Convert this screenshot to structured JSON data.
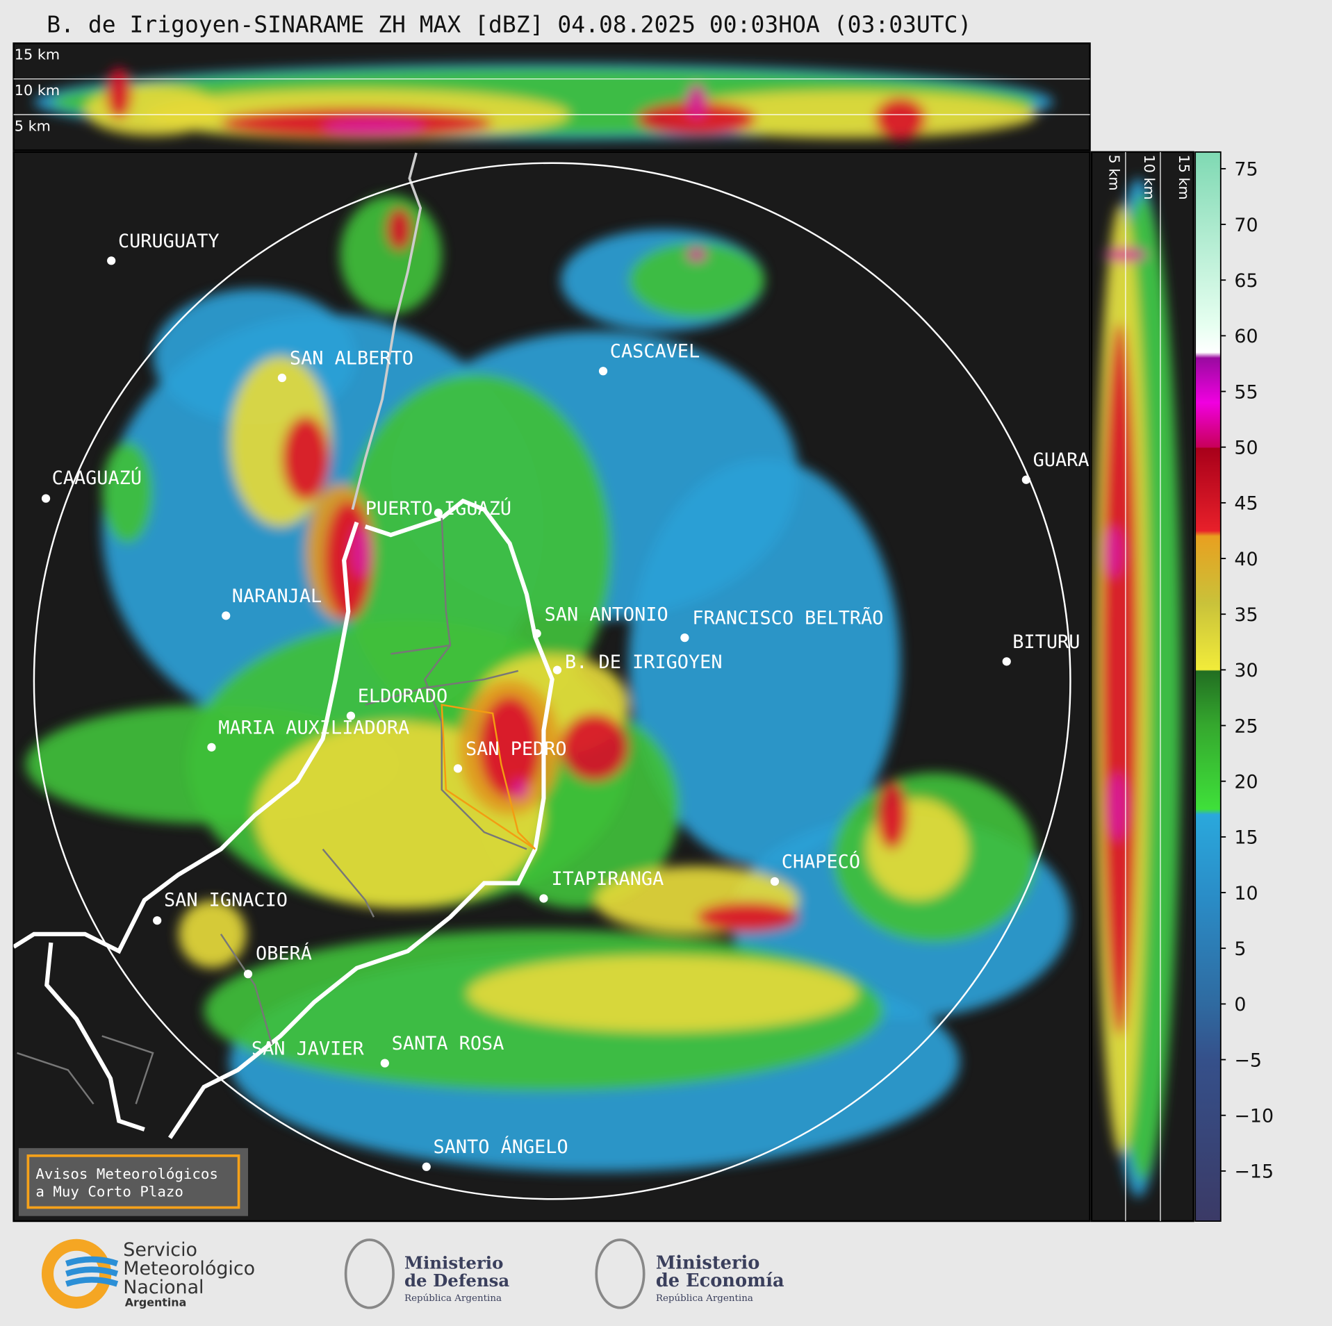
{
  "header": {
    "title": "B. de Irigoyen-SINARAME ZH MAX [dBZ] 04.08.2025 00:03HOA (03:03UTC)"
  },
  "top_panel": {
    "height_labels": [
      "15 km",
      "10 km",
      "5 km"
    ]
  },
  "side_panel": {
    "height_labels": [
      "5 km",
      "10 km",
      "15 km"
    ]
  },
  "map": {
    "cities": [
      {
        "label": "CURUGUATY"
      },
      {
        "label": "SAN ALBERTO"
      },
      {
        "label": "CASCAVEL"
      },
      {
        "label": "CAAGUAZÚ"
      },
      {
        "label": "GUARA"
      },
      {
        "label": "PUERTO IGUAZÚ"
      },
      {
        "label": "NARANJAL"
      },
      {
        "label": "SAN ANTONIO"
      },
      {
        "label": "FRANCISCO BELTRÃO"
      },
      {
        "label": "BITURU"
      },
      {
        "label": "B. DE IRIGOYEN"
      },
      {
        "label": "ELDORADO"
      },
      {
        "label": "MARIA AUXILIADORA"
      },
      {
        "label": "SAN PEDRO"
      },
      {
        "label": "CHAPECÓ"
      },
      {
        "label": "ITAPIRANGA"
      },
      {
        "label": "SAN IGNACIO"
      },
      {
        "label": "OBERÁ"
      },
      {
        "label": "SAN JAVIER"
      },
      {
        "label": "SANTA ROSA"
      },
      {
        "label": "SANTO ÁNGELO"
      }
    ]
  },
  "colorbar": {
    "range": [
      -19.5,
      76.5
    ],
    "ticks": [
      75,
      70,
      65,
      60,
      55,
      50,
      45,
      40,
      35,
      30,
      25,
      20,
      15,
      10,
      5,
      0,
      {
        "value": -5,
        "label": "−5"
      },
      {
        "value": -10,
        "label": "−10"
      },
      {
        "value": -15,
        "label": "−15"
      }
    ]
  },
  "legend": {
    "lines": [
      "Avisos Meteorológicos",
      "a Muy Corto Plazo"
    ]
  },
  "footer": {
    "logos": [
      {
        "lines": [
          "Servicio",
          "Meteorológico",
          "Nacional",
          "Argentina"
        ]
      },
      {
        "lines": [
          "Ministerio",
          "de Defensa",
          "República Argentina"
        ]
      },
      {
        "lines": [
          "Ministerio",
          "de Economía",
          "República Argentina"
        ]
      }
    ]
  }
}
